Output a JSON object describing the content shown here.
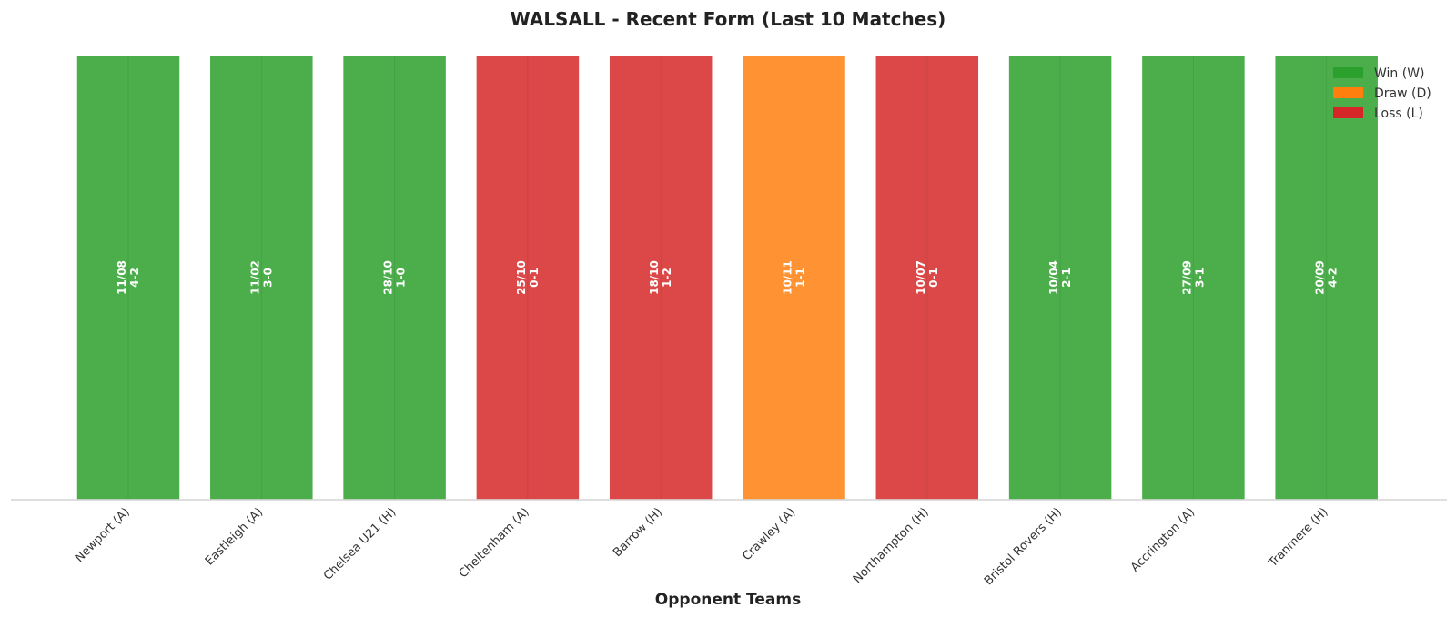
{
  "chart_data": {
    "type": "bar",
    "title": "WALSALL - Recent Form (Last 10 Matches)",
    "xlabel": "Opponent Teams",
    "ylabel": "",
    "ylim": [
      0,
      1
    ],
    "grid": false,
    "legend_position": "top-right",
    "legend": [
      {
        "key": "W",
        "label": "Win (W)",
        "color": "#2ca02c"
      },
      {
        "key": "D",
        "label": "Draw (D)",
        "color": "#ff7f0e"
      },
      {
        "key": "L",
        "label": "Loss (L)",
        "color": "#d62728"
      }
    ],
    "categories": [
      "Newport (A)",
      "Eastleigh (A)",
      "Chelsea U21 (H)",
      "Cheltenham (A)",
      "Barrow (H)",
      "Crawley (A)",
      "Northampton (H)",
      "Bristol Rovers (H)",
      "Accrington (A)",
      "Tranmere (H)"
    ],
    "values": [
      1,
      1,
      1,
      1,
      1,
      1,
      1,
      1,
      1,
      1
    ],
    "results": [
      "W",
      "W",
      "W",
      "L",
      "L",
      "D",
      "L",
      "W",
      "W",
      "W"
    ],
    "dates": [
      "11/08",
      "11/02",
      "28/10",
      "25/10",
      "18/10",
      "10/11",
      "10/07",
      "10/04",
      "27/09",
      "20/09"
    ],
    "scores": [
      "4-2",
      "3-0",
      "1-0",
      "0-1",
      "1-2",
      "1-1",
      "0-1",
      "2-1",
      "3-1",
      "4-2"
    ]
  }
}
